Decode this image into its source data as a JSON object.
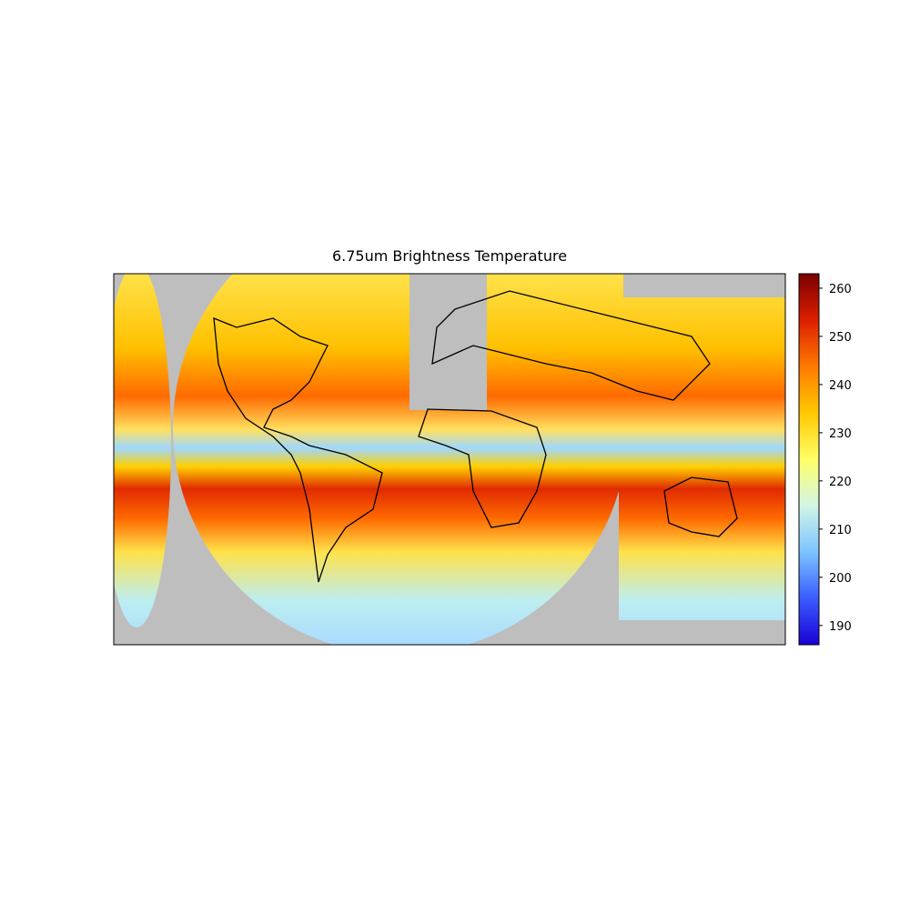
{
  "chart_data": {
    "type": "map",
    "title": "6.75um Brightness Temperature",
    "colorbar": {
      "lim": [
        186,
        263
      ],
      "ticks": [
        190,
        200,
        210,
        220,
        230,
        240,
        250,
        260
      ],
      "colormap": [
        "#1a00d6",
        "#3a5cff",
        "#7cc4ff",
        "#d2f5e6",
        "#ffff66",
        "#ffc800",
        "#ff7a00",
        "#dc1e00",
        "#7a0000"
      ]
    }
  }
}
